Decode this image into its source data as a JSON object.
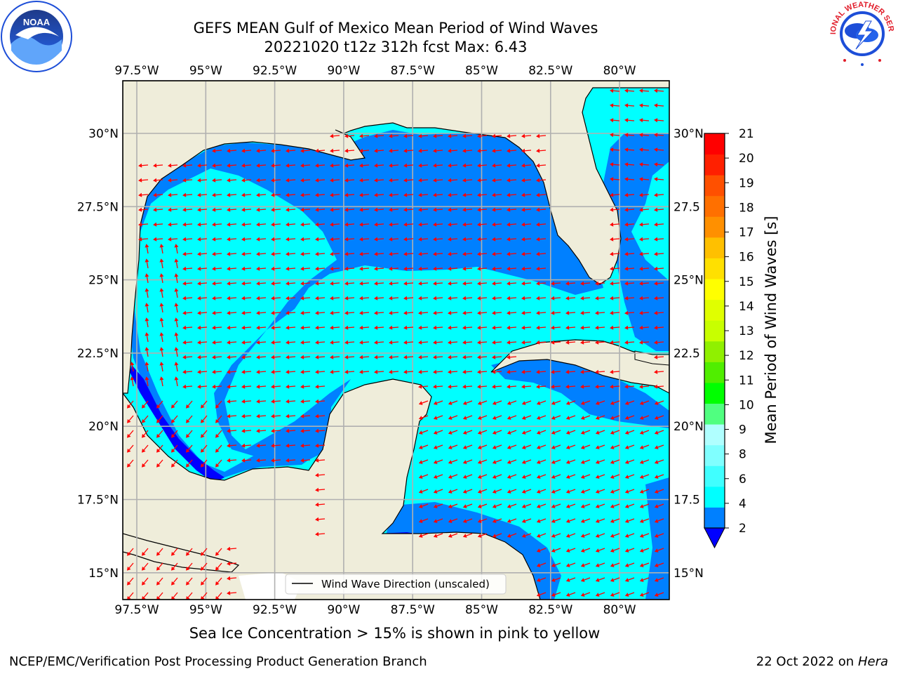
{
  "header": {
    "title_line1": "GEFS MEAN Gulf of Mexico Mean Period of Wind Waves",
    "title_line2": "20221020 t12z 312h fcst   Max: 6.43"
  },
  "logos": {
    "noaa": "NOAA",
    "nws": "NATIONAL WEATHER SERVICE"
  },
  "map": {
    "lon_labels": [
      "97.5°W",
      "95°W",
      "92.5°W",
      "90°W",
      "87.5°W",
      "85°W",
      "82.5°W",
      "80°W"
    ],
    "lat_labels_left": [
      "30°N",
      "27.5°N",
      "25°N",
      "22.5°N",
      "20°N",
      "17.5°N",
      "15°N"
    ],
    "lat_labels_right": [
      "30°N",
      "27.5",
      "25°N",
      "22.5",
      "20°N",
      "17.5",
      "15°N"
    ],
    "legend_text": "Wind Wave Direction (unscaled)",
    "colors": {
      "land": "#efedda",
      "band_2_4": "#0080ff",
      "band_4_6": "#00ffff",
      "below_2": "#0000ff",
      "arrow": "#ff0000",
      "grid": "#b0b0b0"
    }
  },
  "colorbar": {
    "label": "Mean Period of Wind Waves [s]",
    "ticks": [
      "21",
      "20",
      "19",
      "18",
      "17",
      "16",
      "15",
      "14",
      "13",
      "12",
      "11",
      "10",
      "9",
      "8",
      "6",
      "4",
      "2"
    ],
    "colors_bottom_to_top": [
      "#0080ff",
      "#00ffff",
      "#40ffff",
      "#80ffff",
      "#b0ffff",
      "#50ff80",
      "#00ff00",
      "#50ee00",
      "#90f000",
      "#c8ff00",
      "#e0ff00",
      "#ffff00",
      "#ffe000",
      "#ffc000",
      "#ff9000",
      "#ff7000",
      "#ff5000",
      "#ff2000",
      "#ff0000"
    ],
    "extend_color": "#0000ff"
  },
  "footer": {
    "caption": "Sea Ice Concentration > 15% is shown in pink to yellow",
    "credit": "NCEP/EMC/Verification Post Processing Product Generation Branch",
    "date": "22 Oct 2022 on",
    "host": "Hera"
  }
}
